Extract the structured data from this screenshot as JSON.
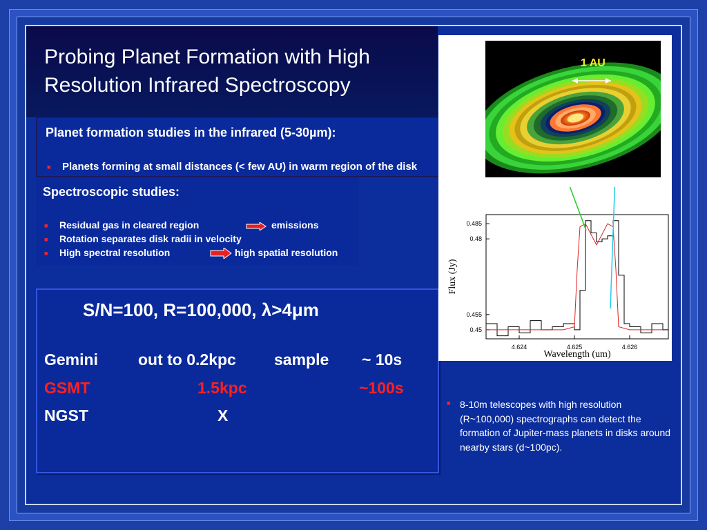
{
  "slide": {
    "title": "Probing Planet Formation with High Resolution Infrared Spectroscopy",
    "box1": {
      "heading": "Planet formation studies in the infrared (5-30µm):",
      "bullets": [
        "Planets forming at small distances (< few AU) in warm region of the disk"
      ]
    },
    "box2": {
      "heading": "Spectroscopic studies:",
      "bullets": [
        {
          "left": "Residual gas in cleared region",
          "right": "emissions"
        },
        {
          "left": "Rotation separates disk radii in velocity",
          "right": ""
        },
        {
          "left": "High spectral resolution",
          "right": "high spatial resolution"
        }
      ]
    },
    "box3": {
      "headline": "S/N=100, R=100,000, λ>4μm",
      "rows": [
        {
          "name": "Gemini",
          "distance": "out to 0.2kpc",
          "label": "sample",
          "time": "~  10s",
          "color": "#ffffff"
        },
        {
          "name": "GSMT",
          "distance": "1.5kpc",
          "label": "",
          "time": "~100s",
          "color": "#ff2020"
        },
        {
          "name": "NGST",
          "distance": "X",
          "label": "",
          "time": "",
          "color": "#ffffff"
        }
      ]
    },
    "note": "8-10m telescopes with high resolution (R~100,000) spectrographs can detect the formation of Jupiter-mass planets in disks around nearby stars (d~100pc).",
    "figure": {
      "disk_label": "1 AU",
      "ylabel": "Flux (Jy)",
      "xlabel": "Wavelength (um)",
      "yticks": [
        "0.485",
        "0.48",
        "0.455",
        "0.45"
      ],
      "xticks": [
        "4.624",
        "4.625",
        "4.626"
      ]
    }
  },
  "chart_data": {
    "type": "line",
    "xlabel": "Wavelength (um)",
    "ylabel": "Flux (Jy)",
    "xlim": [
      4.6234,
      4.6267
    ],
    "ylim": [
      0.447,
      0.488
    ],
    "xticks": [
      4.624,
      4.625,
      4.626
    ],
    "yticks": [
      0.45,
      0.455,
      0.48,
      0.485
    ],
    "series": [
      {
        "style": "black-step",
        "x": [
          4.6234,
          4.6236,
          4.6238,
          4.624,
          4.6242,
          4.6244,
          4.6246,
          4.6248,
          4.625,
          4.6251,
          4.6252,
          4.6253,
          4.6254,
          4.6255,
          4.6256,
          4.6257,
          4.6258,
          4.6259,
          4.626,
          4.6262,
          4.6264,
          4.6266
        ],
        "values": [
          0.452,
          0.448,
          0.451,
          0.449,
          0.453,
          0.45,
          0.451,
          0.452,
          0.45,
          0.463,
          0.486,
          0.482,
          0.479,
          0.48,
          0.481,
          0.486,
          0.468,
          0.452,
          0.451,
          0.449,
          0.452,
          0.45
        ]
      },
      {
        "style": "red-model",
        "x": [
          4.6234,
          4.6248,
          4.625,
          4.62505,
          4.6251,
          4.6252,
          4.6254,
          4.6256,
          4.6257,
          4.62575,
          4.6258,
          4.626,
          4.6266
        ],
        "values": [
          0.45,
          0.45,
          0.451,
          0.47,
          0.484,
          0.485,
          0.478,
          0.485,
          0.484,
          0.47,
          0.451,
          0.45,
          0.45
        ]
      }
    ]
  }
}
